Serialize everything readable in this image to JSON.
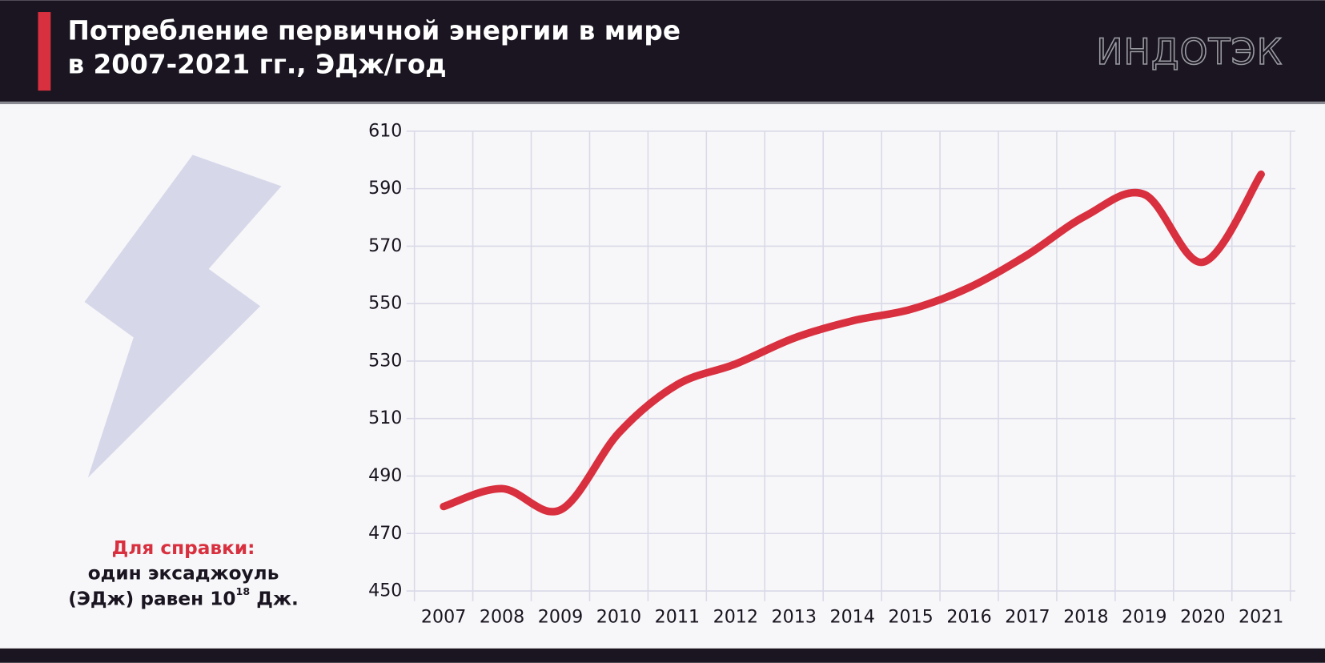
{
  "header": {
    "title_line1": "Потребление первичной энергии в мире",
    "title_line2": "в 2007-2021 гг., ЭДж/год",
    "logo": "ИНДОТЭК"
  },
  "note": {
    "title": "Для справки:",
    "line1": "один эксаджоуль",
    "line2": "(ЭДж) равен 10",
    "exponent": "18",
    "suffix": " Дж."
  },
  "chart_data": {
    "type": "line",
    "title": "Потребление первичной энергии в мире в 2007-2021 гг., ЭДж/год",
    "categories": [
      "2007",
      "2008",
      "2009",
      "2010",
      "2011",
      "2012",
      "2013",
      "2014",
      "2015",
      "2016",
      "2017",
      "2018",
      "2019",
      "2020",
      "2021"
    ],
    "series": [
      {
        "name": "Потребление первичной энергии",
        "color": "#d9303f",
        "values": [
          479.4,
          485.6,
          478.2,
          505,
          521.8,
          529,
          538,
          544,
          548,
          555.6,
          567,
          580.6,
          588,
          564.4,
          595
        ]
      }
    ],
    "ylim": [
      450,
      610
    ],
    "yticks": [
      450,
      470,
      490,
      510,
      530,
      550,
      570,
      590,
      610
    ],
    "grid": true
  }
}
